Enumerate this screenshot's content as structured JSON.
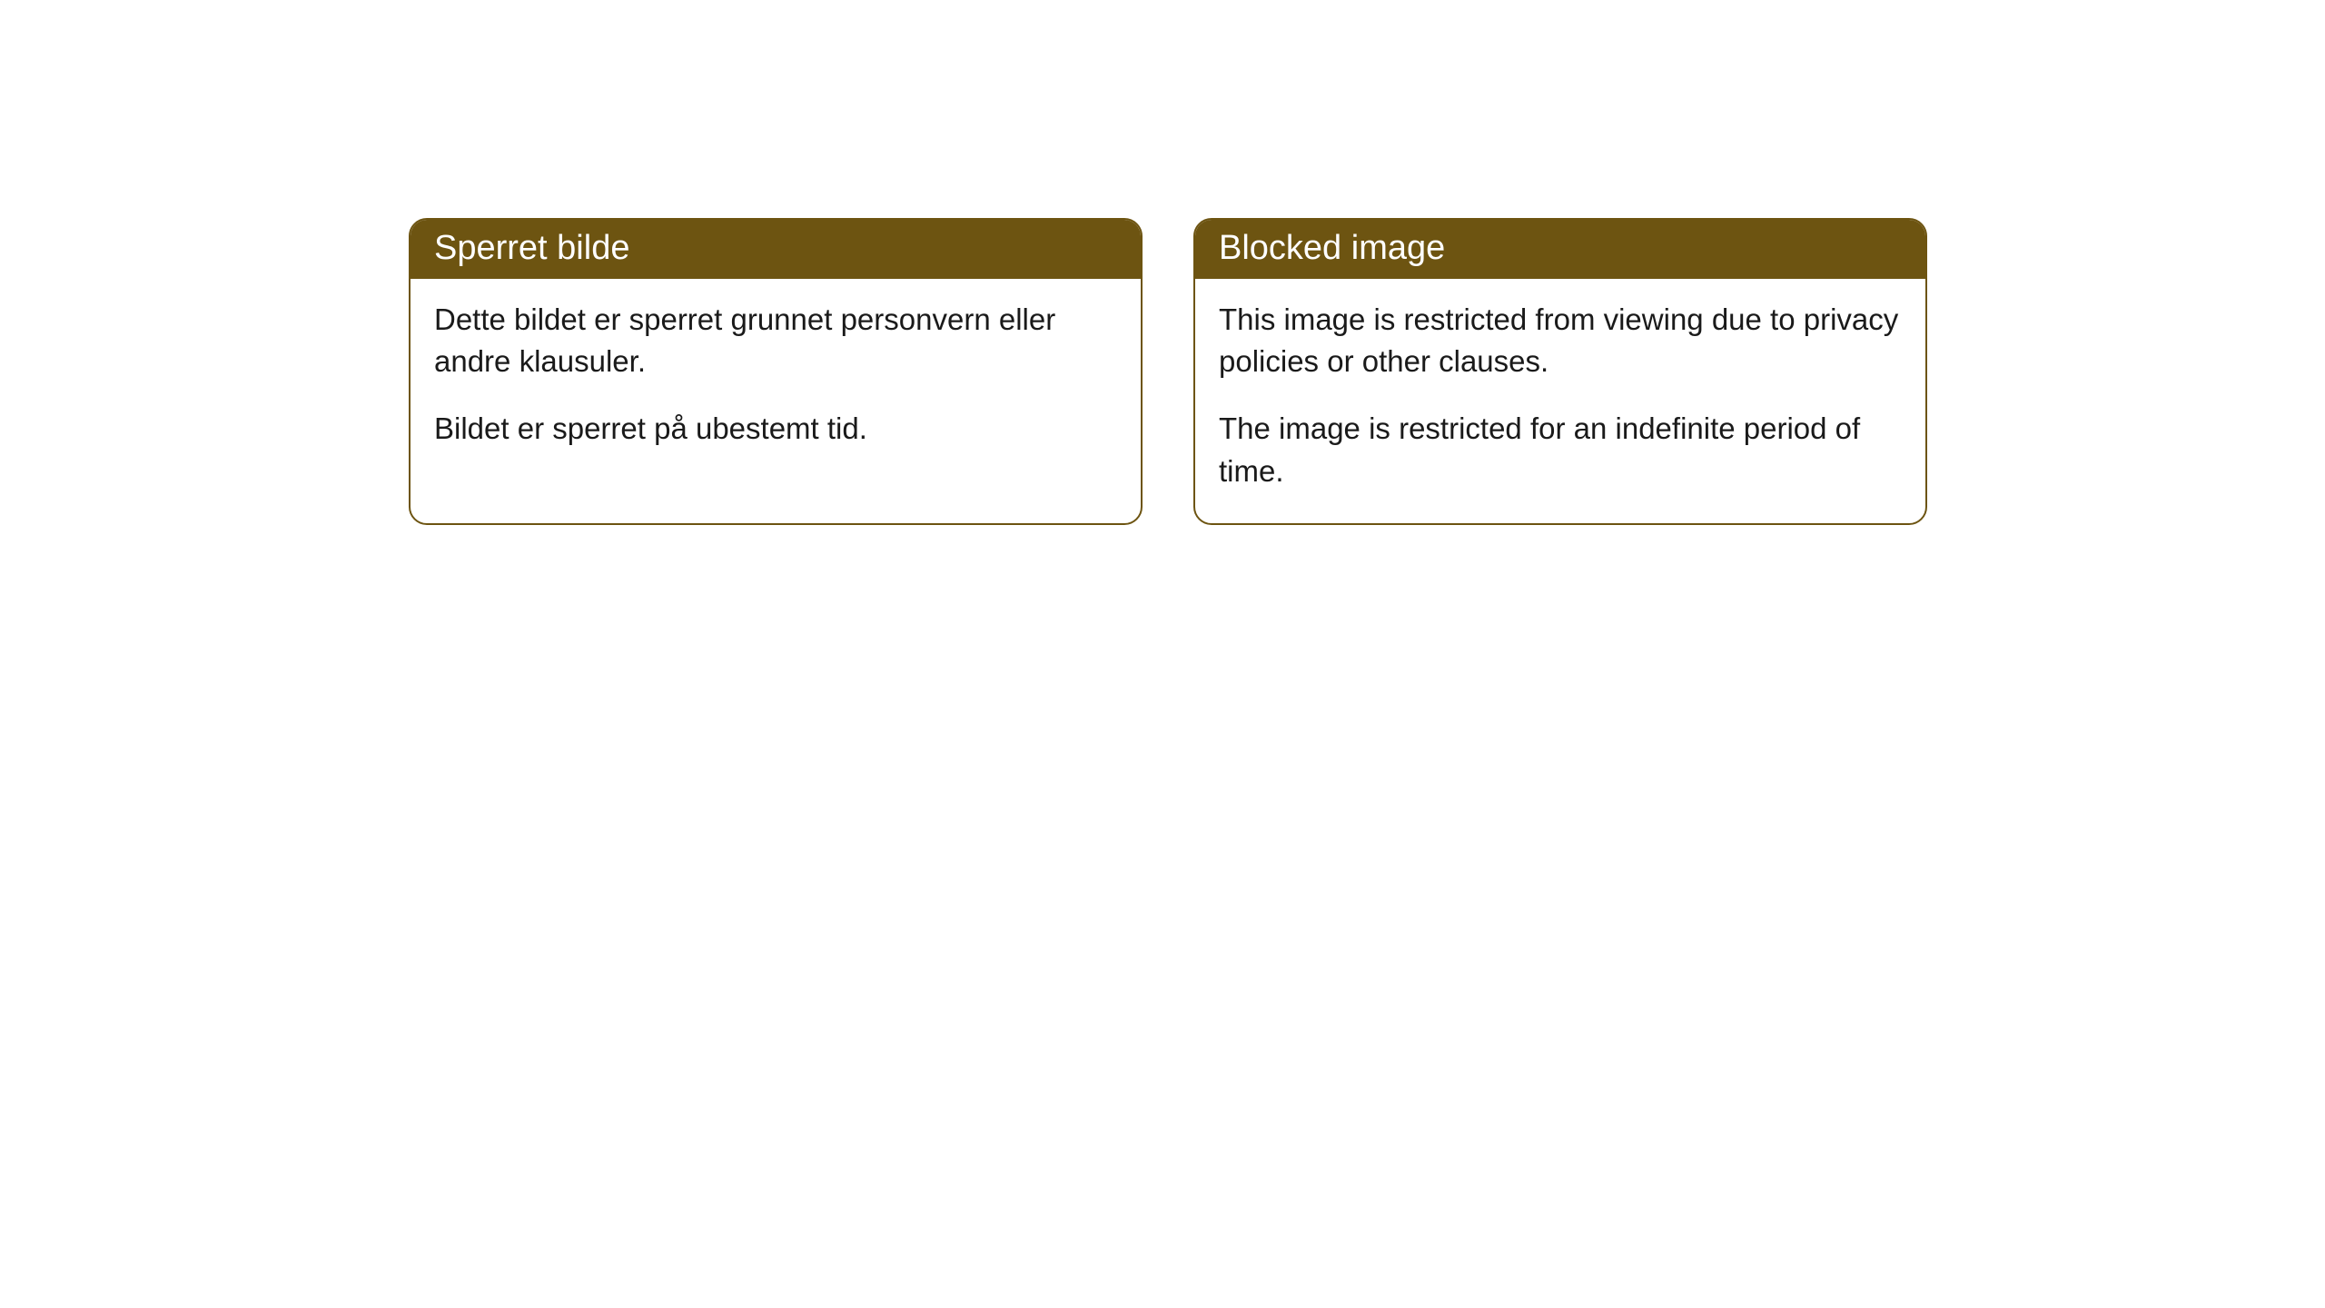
{
  "cards": [
    {
      "title": "Sperret bilde",
      "paragraph1": "Dette bildet er sperret grunnet personvern eller andre klausuler.",
      "paragraph2": "Bildet er sperret på ubestemt tid."
    },
    {
      "title": "Blocked image",
      "paragraph1": "This image is restricted from viewing due to privacy policies or other clauses.",
      "paragraph2": "The image is restricted for an indefinite period of time."
    }
  ],
  "style": {
    "header_bg_color": "#6d5411",
    "header_text_color": "#ffffff",
    "border_color": "#6d5411",
    "body_bg_color": "#ffffff",
    "body_text_color": "#1a1a1a",
    "border_radius": 20,
    "title_fontsize": 38,
    "body_fontsize": 33
  }
}
